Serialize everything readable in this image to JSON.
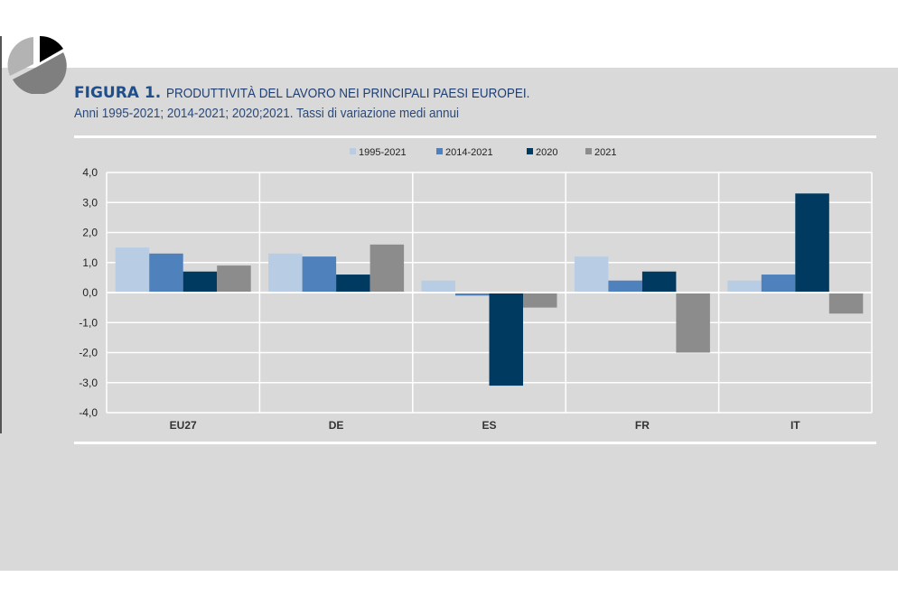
{
  "figure": {
    "label": "FIGURA 1.",
    "title": "PRODUTTIVITÀ DEL LAVORO NEI PRINCIPALI PAESI EUROPEI.",
    "subtitle": "Anni 1995-2021; 2014-2021; 2020;2021. Tassi di variazione medi annui",
    "icon": "pie-chart-icon"
  },
  "chart_data": {
    "type": "bar",
    "title": "",
    "xlabel": "",
    "ylabel": "",
    "categories": [
      "EU27",
      "DE",
      "ES",
      "FR",
      "IT"
    ],
    "series": [
      {
        "name": "1995-2021",
        "color": "#b8cce4",
        "values": [
          1.5,
          1.3,
          0.4,
          1.2,
          0.4
        ]
      },
      {
        "name": "2014-2021",
        "color": "#4f81bd",
        "values": [
          1.3,
          1.2,
          -0.1,
          0.4,
          0.6
        ]
      },
      {
        "name": "2020",
        "color": "#003a60",
        "values": [
          0.7,
          0.6,
          -3.1,
          0.7,
          3.3
        ]
      },
      {
        "name": "2021",
        "color": "#8c8c8c",
        "values": [
          0.9,
          1.6,
          -0.5,
          -2.0,
          -0.7
        ]
      }
    ],
    "ylim": [
      -4,
      4
    ],
    "yticks": [
      "4,0",
      "3,0",
      "2,0",
      "1,0",
      "0,0",
      "-1,0",
      "-2,0",
      "-3,0",
      "-4,0"
    ],
    "grid": true,
    "legend": "top-center"
  }
}
